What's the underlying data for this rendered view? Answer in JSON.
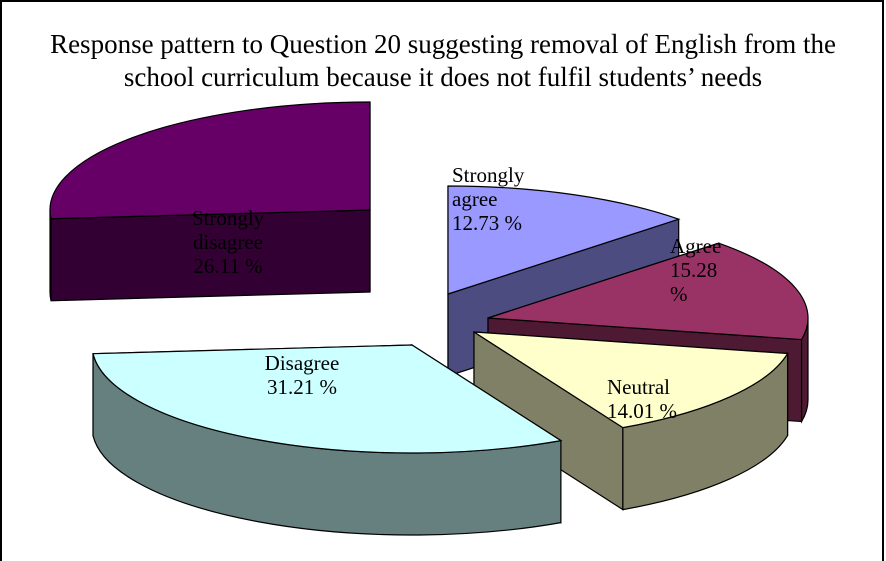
{
  "chart_data": {
    "type": "pie",
    "title": "Response pattern to Question 20 suggesting removal of English from the school curriculum because it does not fulfil students’ needs",
    "legend": "none",
    "slices": [
      {
        "label_lines": [
          "Strongly",
          "agree",
          "12.73 %"
        ],
        "category": "Strongly agree",
        "value": 12.73,
        "top_color": "#9999ff",
        "side_color": "#4c4c80"
      },
      {
        "label_lines": [
          "Agree",
          "15.28",
          "%"
        ],
        "category": "Agree",
        "value": 15.28,
        "top_color": "#993366",
        "side_color": "#4d1933"
      },
      {
        "label_lines": [
          "Neutral",
          "14.01 %"
        ],
        "category": "Neutral",
        "value": 14.01,
        "top_color": "#ffffcc",
        "side_color": "#808066"
      },
      {
        "label_lines": [
          "Disagree",
          "31.21 %"
        ],
        "category": "Disagree",
        "value": 31.21,
        "top_color": "#ccffff",
        "side_color": "#668080"
      },
      {
        "label_lines": [
          "Strongly",
          "disagree",
          "26.11 %"
        ],
        "category": "Strongly disagree",
        "value": 26.11,
        "top_color": "#660066",
        "side_color": "#330033"
      }
    ]
  }
}
